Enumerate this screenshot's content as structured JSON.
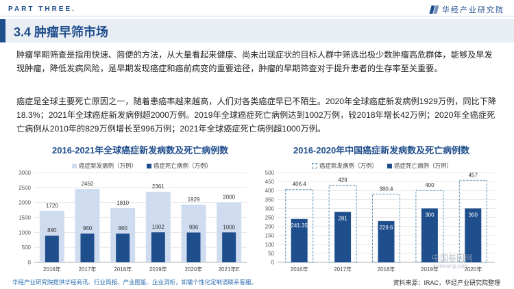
{
  "header": {
    "part_label": "PART THREE.",
    "brand": "华经产业研究院"
  },
  "section": {
    "title": "3.4 肿瘤早筛市场"
  },
  "paragraphs": [
    "肿瘤早期筛查是指用快速、简便的方法，从大量看起来健康、尚未出现症状的目标人群中筛选出极少数肿瘤高危群体，能够及早发现肿瘤，降低发病风险，是早期发现癌症和癌前病变的重要途径，肿瘤的早期筛查对于提升患者的生存率至关重要。",
    "癌症是全球主要死亡原因之一，随着患癌率越来越高，人们对各类癌症早已不陌生。2020年全球癌症新发病例1929万例，同比下降18.3%；2021年全球癌症新发病例超2000万例。2019年全球癌症死亡病例达到1002万例，较2018年增长42万例；2020年全癌症死亡病例从2010年的829万例增长至996万例；2021年全球癌症死亡病例超1000万例。"
  ],
  "chart_data": [
    {
      "type": "bar",
      "title": "2016-2021年全球癌症新发病数及死亡病例数",
      "categories": [
        "2016年",
        "2017年",
        "2018年",
        "2019年",
        "2020年",
        "2021年E"
      ],
      "series": [
        {
          "name": "癌症新发病例（万例）",
          "values": [
            1720,
            2450,
            1810,
            2361,
            1929,
            2000
          ],
          "color": "#cfdcf0"
        },
        {
          "name": "癌症死亡病例（万例）",
          "values": [
            890,
            960,
            960,
            1002,
            996,
            1000
          ],
          "color": "#1f4e8c"
        }
      ],
      "yticks": [
        0,
        500,
        1000,
        1500,
        2000,
        2500,
        3000
      ],
      "ylim": [
        0,
        3000
      ],
      "legend": "top"
    },
    {
      "type": "bar",
      "title": "2016-2020年中国癌症新发病数及死亡病例数",
      "categories": [
        "2016年",
        "2017年",
        "2018年",
        "2019年",
        "2020年"
      ],
      "series": [
        {
          "name": "癌症新发病例（万例）",
          "values": [
            406.4,
            429,
            380.4,
            400,
            457
          ],
          "color": "#5b8fb0"
        },
        {
          "name": "癌症死亡病例（万例）",
          "values": [
            241.35,
            281,
            229.6,
            300,
            300
          ],
          "color": "#1f4e8c"
        }
      ],
      "yticks": [
        0,
        50,
        100,
        150,
        200,
        250,
        300,
        350,
        400,
        450,
        500
      ],
      "ylim": [
        0,
        500
      ],
      "legend": "top"
    }
  ],
  "footer": {
    "note": "华经产业研究院提供华经商讯、行业简报、产业图鉴、企业洞析，如需个性化定制请联系客服。",
    "source": "资料来源：IRAC，华经产业研究院整理"
  },
  "watermark": {
    "logo": "中国基因网",
    "url": "jiyinwang.com"
  }
}
